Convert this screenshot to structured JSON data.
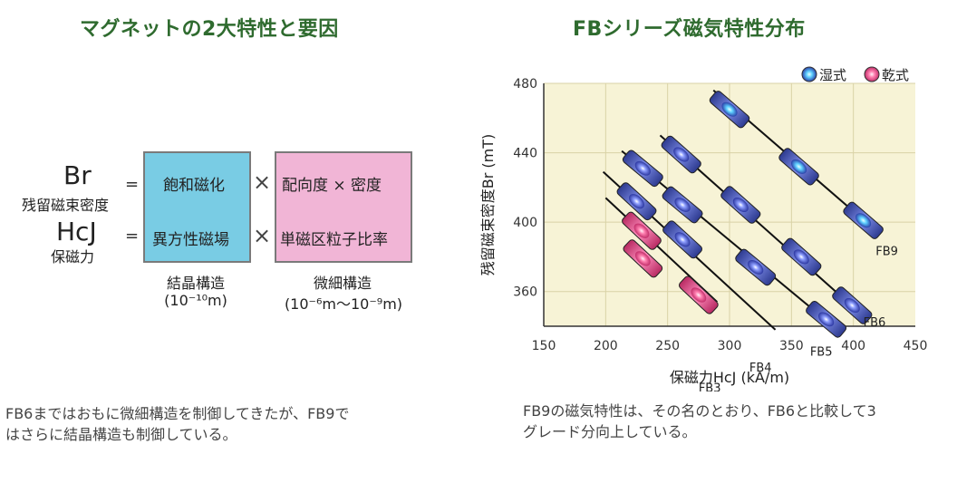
{
  "left": {
    "title": "マグネットの2大特性と要因",
    "br_symbol": "Br",
    "br_label": "残留磁束密度",
    "hcj_symbol": "HcJ",
    "hcj_label": "保磁力",
    "equals": "=",
    "times": "×",
    "cells": {
      "saturation": "飽和磁化",
      "orientation": "配向度 × 密度",
      "anisotropy": "異方性磁場",
      "single_domain": "単磁区粒子比率"
    },
    "captions": {
      "crystal_title": "結晶構造",
      "crystal_scale": "(10⁻¹⁰m)",
      "micro_title": "微細構造",
      "micro_scale": "(10⁻⁶m～10⁻⁹m)"
    },
    "description": [
      "FB6まではおもに微細構造を制御してきたが、FB9で",
      "はさらに結晶構造も制御している。"
    ]
  },
  "right": {
    "title": "FBシリーズ磁気特性分布",
    "description": [
      "FB9の磁気特性は、その名のとおり、FB6と比較して3",
      "グレード分向上している。"
    ]
  },
  "chart_data": {
    "type": "scatter",
    "xlabel": "保磁力HcJ (kA/m)",
    "ylabel": "残留磁束密度Br (mT)",
    "xlim": [
      150,
      450
    ],
    "ylim": [
      340,
      480
    ],
    "xticks": [
      150,
      200,
      250,
      300,
      350,
      400,
      450
    ],
    "yticks": [
      360,
      400,
      440,
      480
    ],
    "grid": true,
    "background": "#f7f3d6",
    "legend": {
      "placement": "top-right",
      "entries": [
        {
          "name": "湿式",
          "color": "#3b4fb8"
        },
        {
          "name": "乾式",
          "color": "#e0407a"
        }
      ]
    },
    "series": [
      {
        "name": "FB9",
        "line": [
          [
            287,
            476
          ],
          [
            415,
            397
          ]
        ],
        "capsules": [
          {
            "x": 300,
            "y": 465,
            "type": "wet",
            "highlight": true
          },
          {
            "x": 356,
            "y": 432,
            "type": "wet",
            "highlight": true
          },
          {
            "x": 408,
            "y": 401,
            "type": "wet",
            "highlight": true
          }
        ]
      },
      {
        "name": "FB6",
        "line": [
          [
            244,
            450
          ],
          [
            403,
            349
          ]
        ],
        "capsules": [
          {
            "x": 261,
            "y": 439,
            "type": "wet"
          },
          {
            "x": 309,
            "y": 410,
            "type": "wet"
          },
          {
            "x": 358,
            "y": 380,
            "type": "wet"
          },
          {
            "x": 399,
            "y": 352,
            "type": "wet"
          }
        ]
      },
      {
        "name": "FB5",
        "line": [
          [
            213,
            441
          ],
          [
            382,
            341
          ]
        ],
        "capsules": [
          {
            "x": 230,
            "y": 431,
            "type": "wet"
          },
          {
            "x": 262,
            "y": 410,
            "type": "wet"
          },
          {
            "x": 321,
            "y": 374,
            "type": "wet"
          },
          {
            "x": 378,
            "y": 344,
            "type": "wet"
          }
        ]
      },
      {
        "name": "FB4",
        "line": [
          [
            198,
            429
          ],
          [
            337,
            338
          ]
        ],
        "capsules": [
          {
            "x": 225,
            "y": 412,
            "type": "wet"
          },
          {
            "x": 262,
            "y": 390,
            "type": "wet"
          }
        ]
      },
      {
        "name": "FB3",
        "line": [
          [
            200,
            414
          ],
          [
            290,
            354
          ]
        ],
        "capsules": [
          {
            "x": 229,
            "y": 395,
            "type": "dry",
            "highlight": true
          },
          {
            "x": 230,
            "y": 379,
            "type": "dry",
            "highlight": true
          },
          {
            "x": 275,
            "y": 358,
            "type": "dry",
            "highlight": true
          }
        ]
      }
    ],
    "series_labels": [
      {
        "name": "FB9",
        "x": 418,
        "y": 381
      },
      {
        "name": "FB6",
        "x": 408,
        "y": 340
      },
      {
        "name": "FB5",
        "x": 365,
        "y": 323
      },
      {
        "name": "FB4",
        "x": 316,
        "y": 314
      },
      {
        "name": "FB3",
        "x": 275,
        "y": 302
      }
    ]
  }
}
